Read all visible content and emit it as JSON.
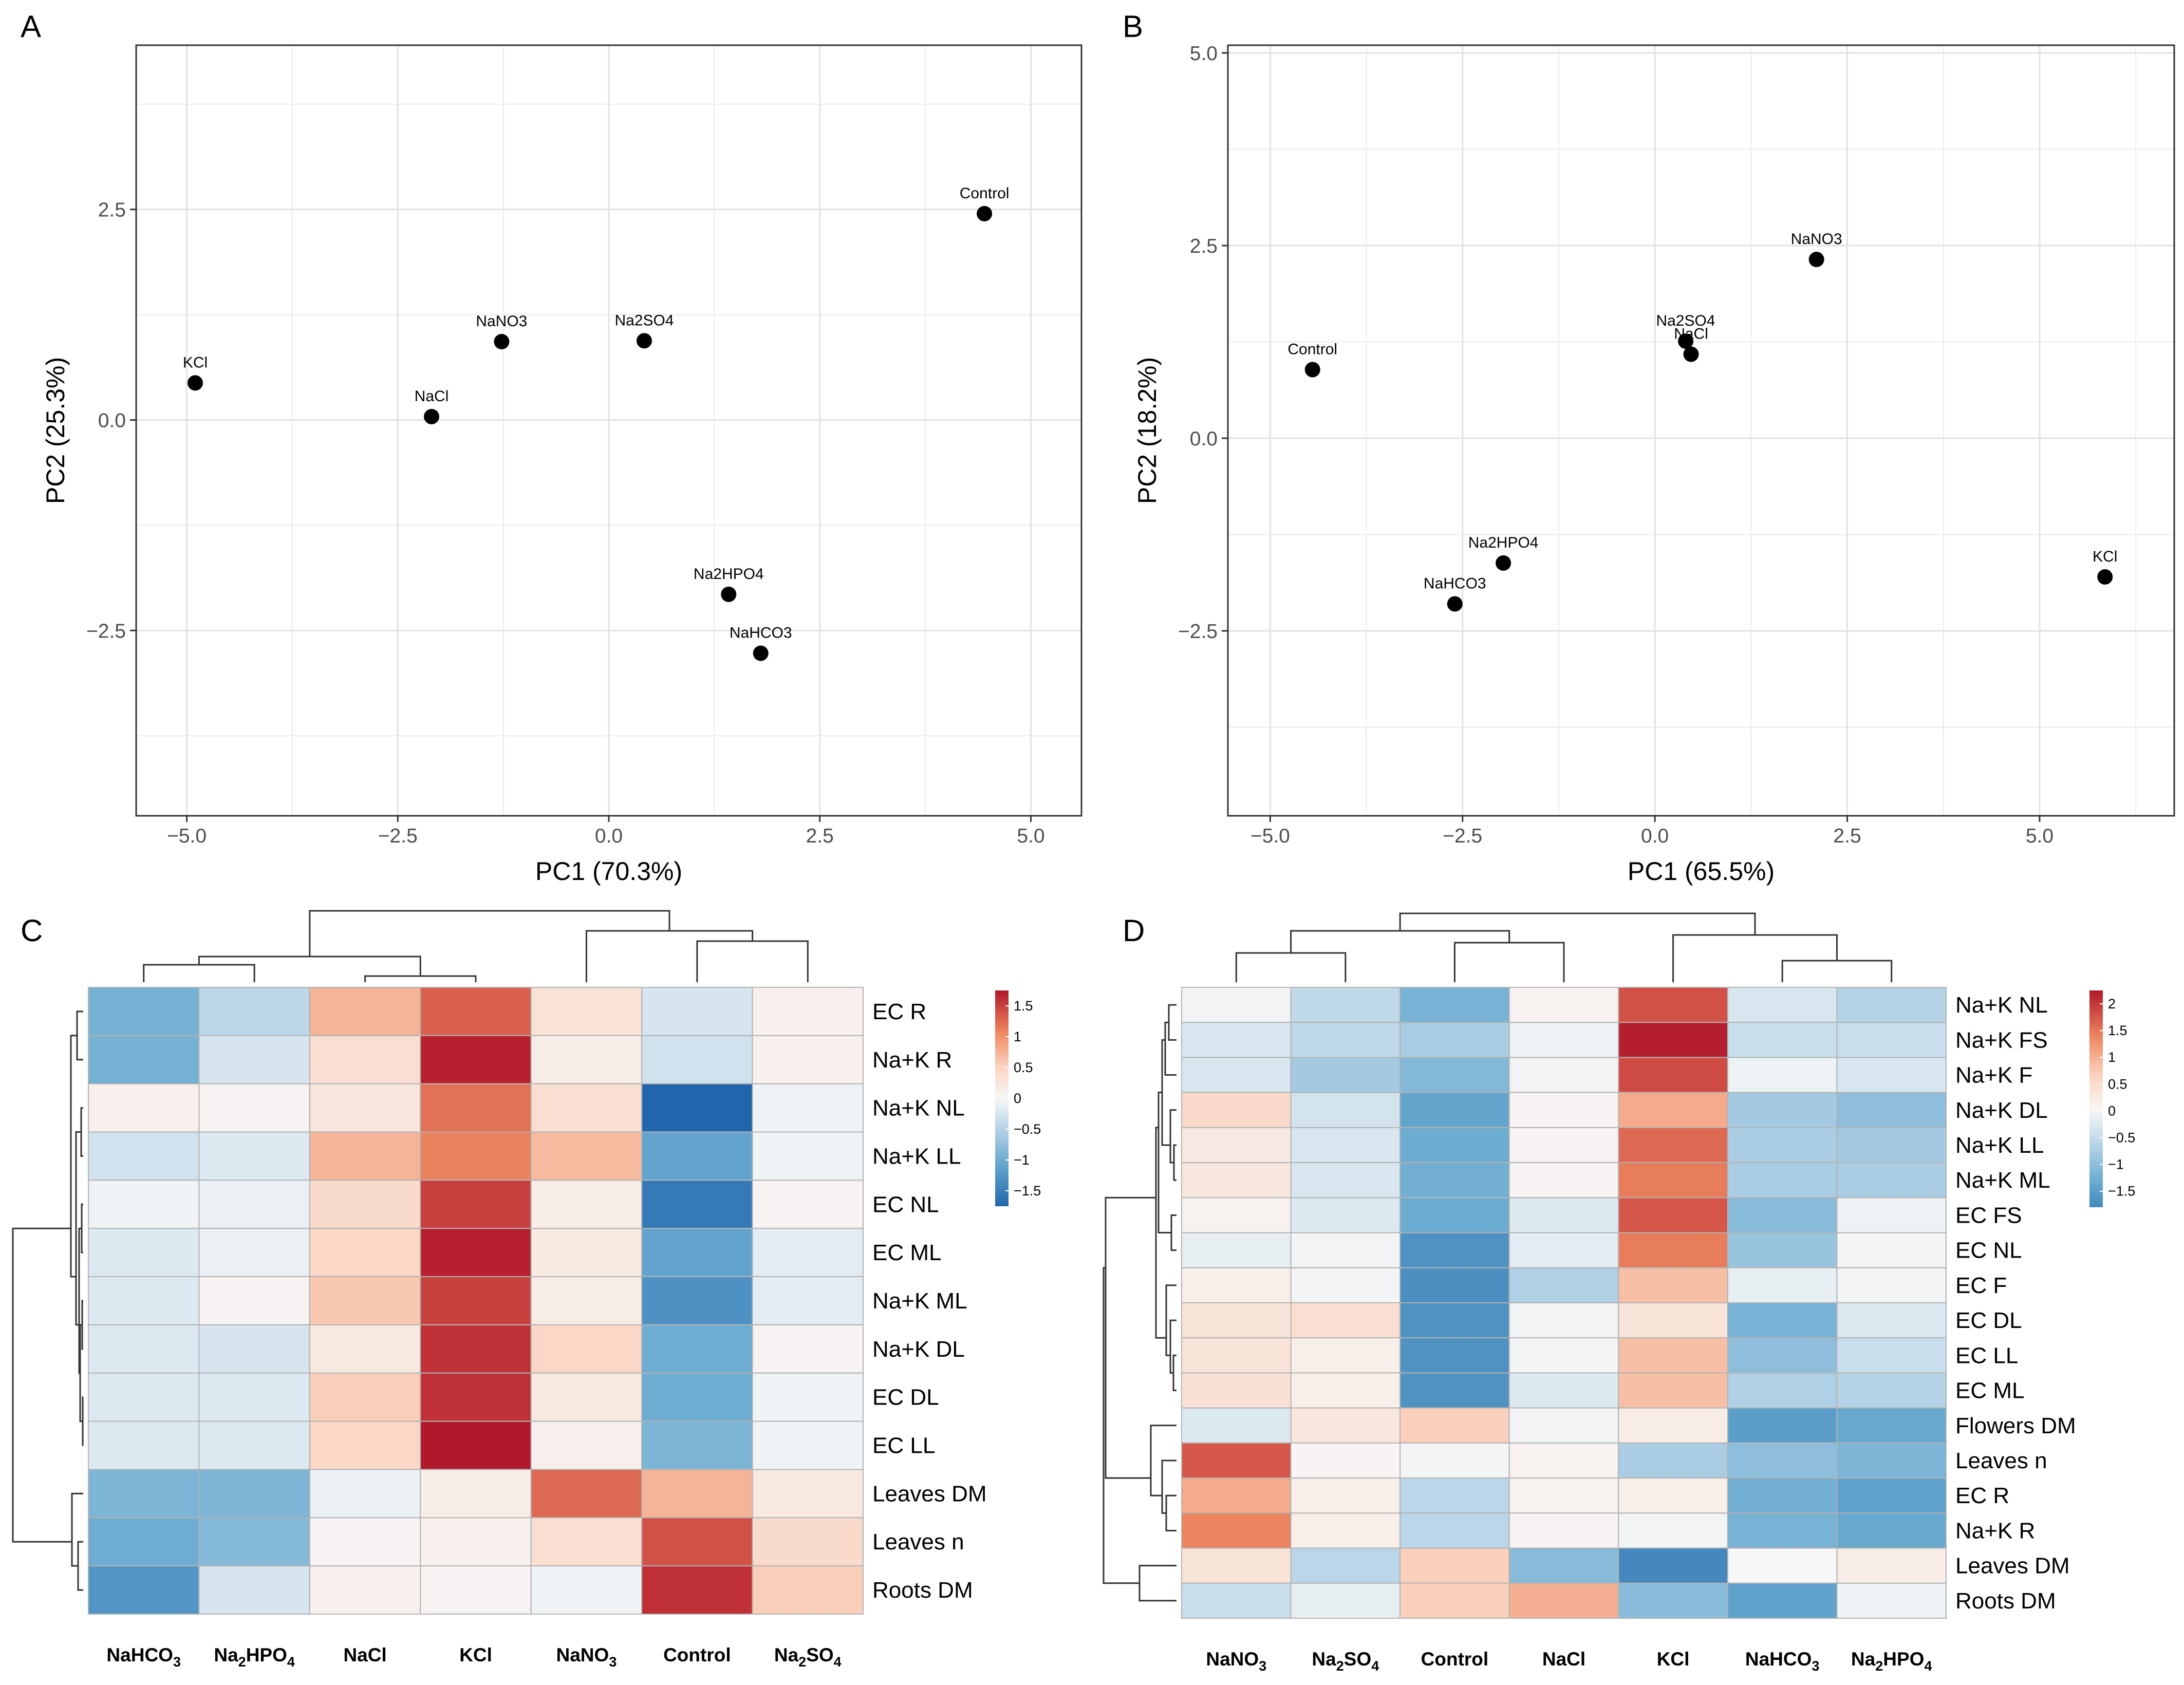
{
  "panels": {
    "A": "A",
    "B": "B",
    "C": "C",
    "D": "D"
  },
  "pca": [
    {
      "panel": "A",
      "xlabel": "PC1 (70.3%)",
      "ylabel": "PC2 (25.3%)",
      "xlim": [
        -5.6,
        5.6
      ],
      "ylim": [
        -4.7,
        4.45
      ],
      "xticks": [
        -5.0,
        -2.5,
        0.0,
        2.5,
        5.0
      ],
      "xtick_labels": [
        "−5.0",
        "−2.5",
        "0.0",
        "2.5",
        "5.0"
      ],
      "yticks": [
        2.5,
        0.0,
        -2.5
      ],
      "ytick_labels": [
        "2.5",
        "0.0",
        "−2.5"
      ],
      "points": [
        {
          "label": "Control",
          "x": 4.45,
          "y": 2.45
        },
        {
          "label": "Na2SO4",
          "x": 0.42,
          "y": 0.94
        },
        {
          "label": "NaNO3",
          "x": -1.27,
          "y": 0.93
        },
        {
          "label": "KCl",
          "x": -4.9,
          "y": 0.44
        },
        {
          "label": "NaCl",
          "x": -2.1,
          "y": 0.04
        },
        {
          "label": "Na2HPO4",
          "x": 1.42,
          "y": -2.07
        },
        {
          "label": "NaHCO3",
          "x": 1.8,
          "y": -2.77
        }
      ]
    },
    {
      "panel": "B",
      "xlabel": "PC1 (65.5%)",
      "ylabel": "PC2 (18.2%)",
      "xlim": [
        -5.55,
        6.75
      ],
      "ylim": [
        -4.9,
        5.1
      ],
      "xticks": [
        -5.0,
        -2.5,
        0.0,
        2.5,
        5.0
      ],
      "xtick_labels": [
        "−5.0",
        "−2.5",
        "0.0",
        "2.5",
        "5.0"
      ],
      "yticks": [
        5.0,
        2.5,
        0.0,
        -2.5
      ],
      "ytick_labels": [
        "5.0",
        "2.5",
        "0.0",
        "−2.5"
      ],
      "points": [
        {
          "label": "Control",
          "x": -4.45,
          "y": 0.89
        },
        {
          "label": "NaNO3",
          "x": 2.1,
          "y": 2.32
        },
        {
          "label": "Na2SO4",
          "x": 0.4,
          "y": 1.26
        },
        {
          "label": "NaCl",
          "x": 0.47,
          "y": 1.09
        },
        {
          "label": "Na2HPO4",
          "x": -1.97,
          "y": -1.62
        },
        {
          "label": "NaHCO3",
          "x": -2.6,
          "y": -2.15
        },
        {
          "label": "KCl",
          "x": 5.85,
          "y": -1.8
        }
      ]
    }
  ],
  "chart_data": [
    {
      "type": "scatter",
      "title": "A",
      "xlabel": "PC1 (70.3%)",
      "ylabel": "PC2 (25.3%)",
      "x": [
        4.45,
        0.42,
        -1.27,
        -4.9,
        -2.1,
        1.42,
        1.8
      ],
      "y": [
        2.45,
        0.94,
        0.93,
        0.44,
        0.04,
        -2.07,
        -2.77
      ],
      "labels": [
        "Control",
        "Na2SO4",
        "NaNO3",
        "KCl",
        "NaCl",
        "Na2HPO4",
        "NaHCO3"
      ]
    },
    {
      "type": "scatter",
      "title": "B",
      "xlabel": "PC1 (65.5%)",
      "ylabel": "PC2 (18.2%)",
      "x": [
        -4.45,
        2.1,
        0.4,
        0.47,
        -1.97,
        -2.6,
        5.85
      ],
      "y": [
        0.89,
        2.32,
        1.26,
        1.09,
        -1.62,
        -2.15,
        -1.8
      ],
      "labels": [
        "Control",
        "NaNO3",
        "Na2SO4",
        "NaCl",
        "Na2HPO4",
        "NaHCO3",
        "KCl"
      ]
    },
    {
      "type": "heatmap",
      "title": "C",
      "columns": [
        "NaHCO3",
        "Na2HPO4",
        "NaCl",
        "KCl",
        "NaNO3",
        "Control",
        "Na2SO4"
      ],
      "rows": [
        "EC R",
        "Na+K R",
        "Na+K NL",
        "Na+K LL",
        "EC NL",
        "EC ML",
        "Na+K ML",
        "Na+K DL",
        "EC DL",
        "EC LL",
        "Leaves DM",
        "Leaves n",
        "Roots DM"
      ],
      "values": [
        [
          -0.95,
          -0.45,
          0.75,
          1.3,
          0.3,
          -0.25,
          0.1
        ],
        [
          -0.95,
          -0.25,
          0.35,
          1.7,
          0.15,
          -0.3,
          0.1
        ],
        [
          0.1,
          0.05,
          0.25,
          1.2,
          0.35,
          -1.75,
          -0.05
        ],
        [
          -0.3,
          -0.2,
          0.75,
          1.1,
          0.7,
          -1.1,
          -0.05
        ],
        [
          -0.05,
          -0.1,
          0.4,
          1.5,
          0.15,
          -1.55,
          0.05
        ],
        [
          -0.2,
          -0.1,
          0.45,
          1.7,
          0.2,
          -1.1,
          -0.15
        ],
        [
          -0.2,
          0.05,
          0.6,
          1.5,
          0.15,
          -1.3,
          -0.15
        ],
        [
          -0.2,
          -0.25,
          0.2,
          1.6,
          0.45,
          -1.0,
          0.05
        ],
        [
          -0.2,
          -0.2,
          0.55,
          1.6,
          0.2,
          -1.0,
          -0.05
        ],
        [
          -0.2,
          -0.2,
          0.45,
          1.75,
          0.1,
          -0.9,
          -0.05
        ],
        [
          -0.9,
          -0.9,
          -0.1,
          0.15,
          1.25,
          0.75,
          0.2
        ],
        [
          -1.0,
          -0.85,
          0.05,
          0.1,
          0.35,
          1.4,
          0.4
        ],
        [
          -1.25,
          -0.25,
          0.1,
          0.05,
          -0.05,
          1.6,
          0.55
        ]
      ],
      "colorbar": {
        "ticks": [
          1.5,
          1,
          0.5,
          0,
          -0.5,
          -1,
          -1.5
        ],
        "tick_labels": [
          "1.5",
          "1",
          "0.5",
          "0",
          "−0.5",
          "−1",
          "−1.5"
        ],
        "range": [
          -1.75,
          1.75
        ]
      }
    },
    {
      "type": "heatmap",
      "title": "D",
      "columns": [
        "NaNO3",
        "Na2SO4",
        "Control",
        "NaCl",
        "KCl",
        "NaHCO3",
        "Na2HPO4"
      ],
      "rows": [
        "Na+K NL",
        "Na+K FS",
        "Na+K F",
        "Na+K DL",
        "Na+K LL",
        "Na+K ML",
        "EC FS",
        "EC NL",
        "EC F",
        "EC DL",
        "EC LL",
        "EC ML",
        "Flowers DM",
        "Leaves n",
        "EC R",
        "Na+K R",
        "Leaves DM",
        "Roots DM"
      ],
      "values": [
        [
          -0.05,
          -0.55,
          -1.2,
          0.1,
          1.8,
          -0.3,
          -0.65
        ],
        [
          -0.3,
          -0.55,
          -0.75,
          -0.1,
          2.2,
          -0.45,
          -0.45
        ],
        [
          -0.3,
          -0.8,
          -1.1,
          -0.05,
          1.85,
          -0.1,
          -0.3
        ],
        [
          0.55,
          -0.35,
          -1.4,
          0.05,
          1.05,
          -0.8,
          -1.0
        ],
        [
          0.25,
          -0.3,
          -1.3,
          0.05,
          1.6,
          -0.75,
          -0.8
        ],
        [
          0.3,
          -0.3,
          -1.25,
          0.05,
          1.45,
          -0.75,
          -0.75
        ],
        [
          0.1,
          -0.25,
          -1.3,
          -0.25,
          1.75,
          -1.05,
          -0.1
        ],
        [
          -0.15,
          -0.05,
          -1.65,
          -0.2,
          1.45,
          -0.9,
          -0.05
        ],
        [
          0.15,
          -0.05,
          -1.7,
          -0.7,
          0.85,
          -0.15,
          -0.05
        ],
        [
          0.35,
          0.45,
          -1.65,
          -0.05,
          0.35,
          -1.2,
          -0.25
        ],
        [
          0.35,
          0.15,
          -1.65,
          -0.05,
          0.85,
          -1.0,
          -0.45
        ],
        [
          0.4,
          0.15,
          -1.65,
          -0.25,
          0.85,
          -0.7,
          -0.65
        ],
        [
          -0.25,
          0.3,
          0.7,
          -0.05,
          0.2,
          -1.5,
          -1.35
        ],
        [
          1.75,
          0.05,
          -0.05,
          0.1,
          -0.75,
          -1.0,
          -1.15
        ],
        [
          1.05,
          0.15,
          -0.6,
          0.1,
          0.15,
          -1.25,
          -1.45
        ],
        [
          1.4,
          0.15,
          -0.6,
          0.05,
          -0.05,
          -1.2,
          -1.35
        ],
        [
          0.35,
          -0.6,
          0.7,
          -1.05,
          -1.8,
          0.0,
          0.2
        ],
        [
          -0.45,
          -0.15,
          0.7,
          1.0,
          -1.05,
          -1.45,
          -0.1
        ]
      ],
      "colorbar": {
        "ticks": [
          2,
          1.5,
          1,
          0.5,
          0,
          -0.5,
          -1,
          -1.5
        ],
        "tick_labels": [
          "2",
          "1.5",
          "1",
          "0.5",
          "0",
          "−0.5",
          "−1",
          "−1.5"
        ],
        "range": [
          -1.8,
          2.25
        ]
      }
    }
  ]
}
